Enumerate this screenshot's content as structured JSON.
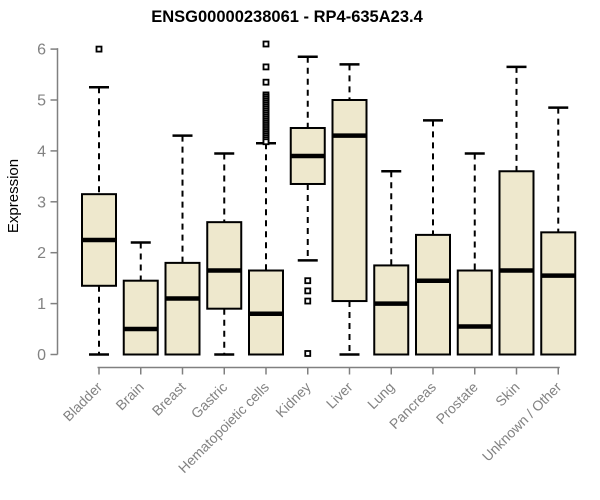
{
  "colors": {
    "background": "#ffffff",
    "box_fill": "#EEE8CD",
    "box_stroke": "#000000",
    "median": "#000000",
    "whisker": "#000000",
    "axis": "#808080",
    "tick_text": "#828282",
    "title_text": "#000000"
  },
  "chart_data": {
    "type": "boxplot",
    "title": "ENSG00000238061 - RP4-635A23.4",
    "xlabel": "",
    "ylabel": "Expression",
    "ylim": [
      0,
      6
    ],
    "yticks": [
      0,
      1,
      2,
      3,
      4,
      5,
      6
    ],
    "grid": false,
    "legend": "none",
    "categories": [
      "Bladder",
      "Brain",
      "Breast",
      "Gastric",
      "Hematopoietic cells",
      "Kidney",
      "Liver",
      "Lung",
      "Pancreas",
      "Prostate",
      "Skin",
      "Unknown / Other"
    ],
    "series": [
      {
        "name": "Bladder",
        "low": 0,
        "q1": 1.35,
        "median": 2.25,
        "q3": 3.15,
        "high": 5.25,
        "outliers": [
          6.0
        ]
      },
      {
        "name": "Brain",
        "low": 0,
        "q1": 0,
        "median": 0.5,
        "q3": 1.45,
        "high": 2.2,
        "outliers": []
      },
      {
        "name": "Breast",
        "low": 0,
        "q1": 0,
        "median": 1.1,
        "q3": 1.8,
        "high": 4.3,
        "outliers": []
      },
      {
        "name": "Gastric",
        "low": 0,
        "q1": 0.9,
        "median": 1.65,
        "q3": 2.6,
        "high": 3.95,
        "outliers": []
      },
      {
        "name": "Hematopoietic cells",
        "low": 0,
        "q1": 0,
        "median": 0.8,
        "q3": 1.65,
        "high": 4.15,
        "outliers": [
          6.1,
          5.65,
          5.35,
          5.1,
          5.06,
          5.02,
          4.98,
          4.94,
          4.9,
          4.86,
          4.82,
          4.78,
          4.74,
          4.7,
          4.66,
          4.62,
          4.58,
          4.54,
          4.5,
          4.46,
          4.42,
          4.38,
          4.34,
          4.3,
          4.26,
          4.22,
          4.18
        ]
      },
      {
        "name": "Kidney",
        "low": 1.85,
        "q1": 3.35,
        "median": 3.9,
        "q3": 4.45,
        "high": 5.85,
        "outliers": [
          1.45,
          1.25,
          1.05,
          0.02
        ]
      },
      {
        "name": "Liver",
        "low": 0,
        "q1": 1.05,
        "median": 4.3,
        "q3": 5.0,
        "high": 5.7,
        "outliers": []
      },
      {
        "name": "Lung",
        "low": 0,
        "q1": 0,
        "median": 1.0,
        "q3": 1.75,
        "high": 3.6,
        "outliers": []
      },
      {
        "name": "Pancreas",
        "low": 0,
        "q1": 0,
        "median": 1.45,
        "q3": 2.35,
        "high": 4.6,
        "outliers": []
      },
      {
        "name": "Prostate",
        "low": 0,
        "q1": 0,
        "median": 0.55,
        "q3": 1.65,
        "high": 3.95,
        "outliers": []
      },
      {
        "name": "Skin",
        "low": 0,
        "q1": 0,
        "median": 1.65,
        "q3": 3.6,
        "high": 5.65,
        "outliers": []
      },
      {
        "name": "Unknown / Other",
        "low": 0,
        "q1": 0,
        "median": 1.55,
        "q3": 2.4,
        "high": 4.85,
        "outliers": []
      }
    ]
  }
}
